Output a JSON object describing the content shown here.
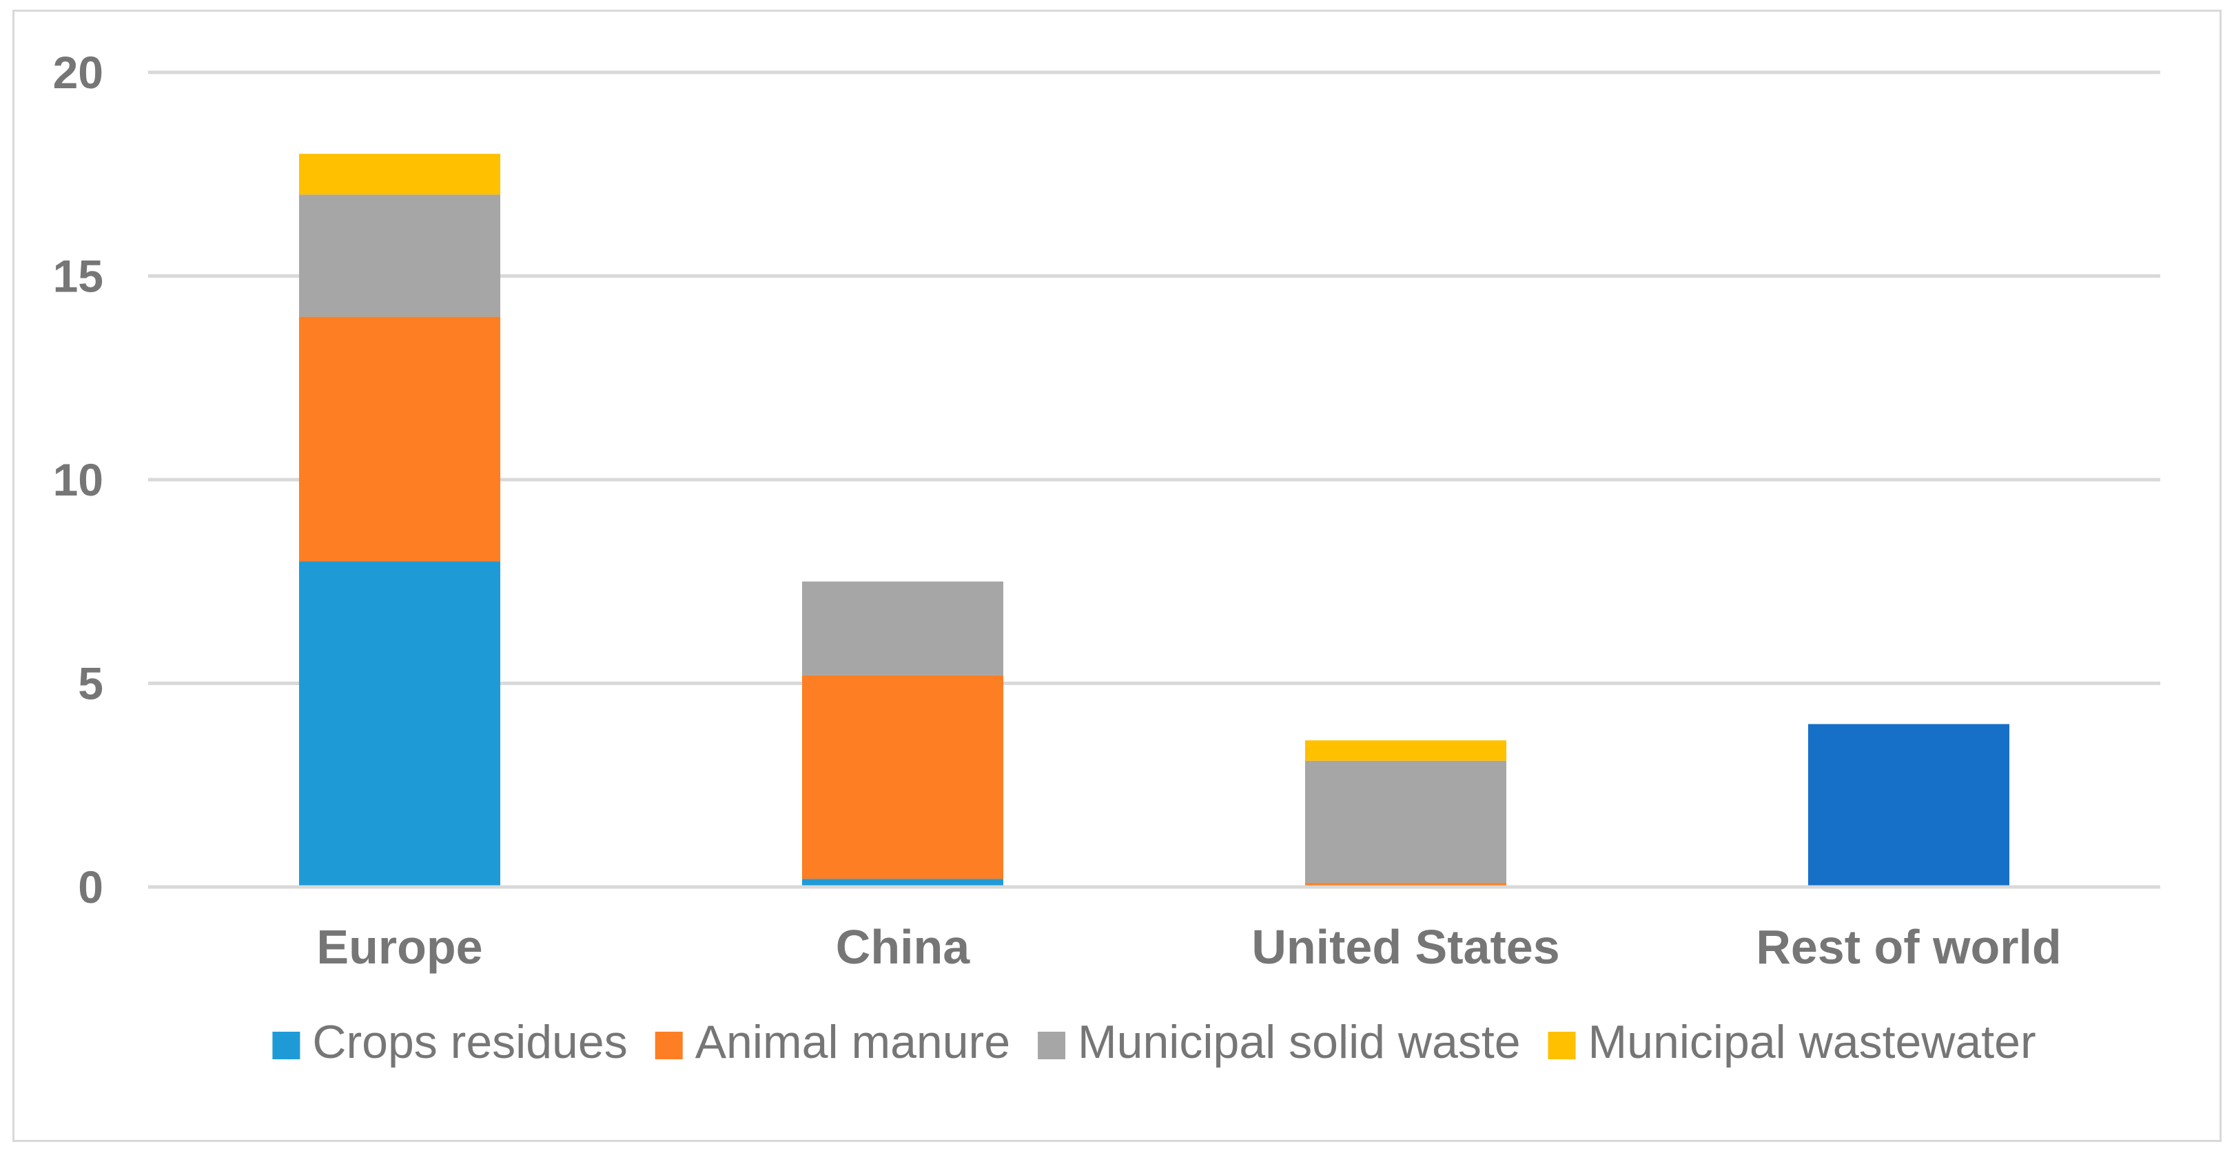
{
  "chart_data": {
    "type": "bar",
    "stacked": true,
    "title": "",
    "xlabel": "",
    "ylabel": "",
    "ylim": [
      0,
      20
    ],
    "yticks": [
      0,
      5,
      10,
      15,
      20
    ],
    "grid": true,
    "legend_position": "bottom",
    "categories": [
      "Europe",
      "China",
      "United States",
      "Rest of world"
    ],
    "series": [
      {
        "name": "Crops residues",
        "color": "#1e9bd7",
        "values": [
          8,
          0.2,
          0,
          0
        ]
      },
      {
        "name": "Animal manure",
        "color": "#fd7e23",
        "values": [
          6,
          5,
          0.1,
          0
        ]
      },
      {
        "name": "Municipal solid waste",
        "color": "#a6a6a6",
        "values": [
          3,
          2.3,
          3,
          0
        ]
      },
      {
        "name": "Municipal wastewater",
        "color": "#ffc000",
        "values": [
          1,
          0,
          0.5,
          0
        ]
      }
    ],
    "extra_bars": [
      {
        "category": "Rest of world",
        "value": 4,
        "color": "#1770c8"
      }
    ]
  }
}
